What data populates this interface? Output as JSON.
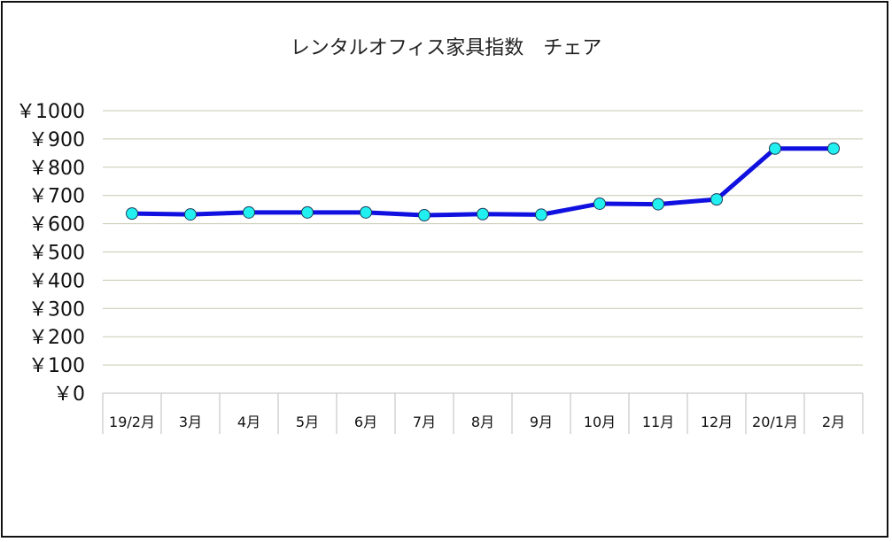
{
  "chart_data": {
    "type": "line",
    "title": "レンタルオフィス家具指数　チェア",
    "xlabel": "",
    "ylabel": "",
    "categories": [
      "19/2月",
      "3月",
      "4月",
      "5月",
      "6月",
      "7月",
      "8月",
      "9月",
      "10月",
      "11月",
      "12月",
      "20/1月",
      "2月"
    ],
    "yticks": [
      "￥0",
      "￥100",
      "￥200",
      "￥300",
      "￥400",
      "￥500",
      "￥600",
      "￥700",
      "￥800",
      "￥900",
      "￥1000"
    ],
    "ylim": [
      0,
      1000
    ],
    "grid": true,
    "series": [
      {
        "values": [
          636,
          633,
          640,
          640,
          640,
          630,
          634,
          632,
          671,
          669,
          686,
          866,
          866
        ],
        "line_color": "#1010e0",
        "marker_color": "#22f0f0"
      }
    ]
  }
}
